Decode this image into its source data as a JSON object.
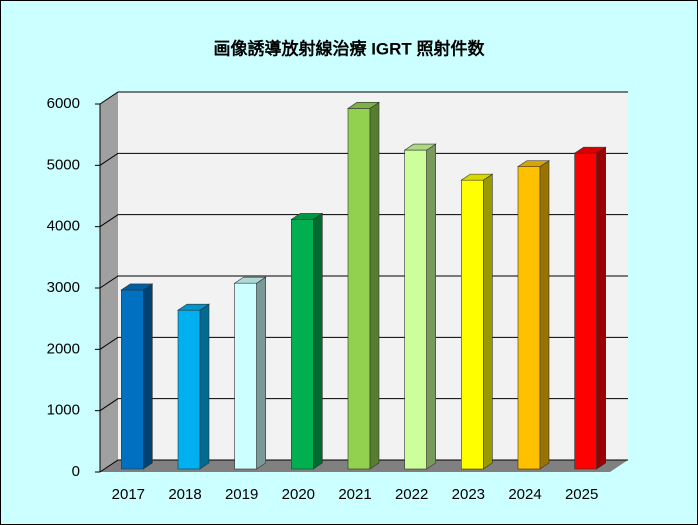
{
  "chart_data": {
    "type": "bar3d",
    "title": "画像誘導放射線治療 IGRT 照射件数",
    "categories": [
      "2017",
      "2018",
      "2019",
      "2020",
      "2021",
      "2022",
      "2023",
      "2024",
      "2025"
    ],
    "values": [
      2920,
      2590,
      3030,
      4070,
      5880,
      5200,
      4710,
      4930,
      5150
    ],
    "colors": [
      "#0070c0",
      "#00b0f0",
      "#ccffff",
      "#00b050",
      "#92d050",
      "#ccff99",
      "#ffff00",
      "#ffc000",
      "#ff0000"
    ],
    "ylim": [
      0,
      6000
    ],
    "yticks": [
      0,
      1000,
      2000,
      3000,
      4000,
      5000,
      6000
    ],
    "grid": true
  }
}
